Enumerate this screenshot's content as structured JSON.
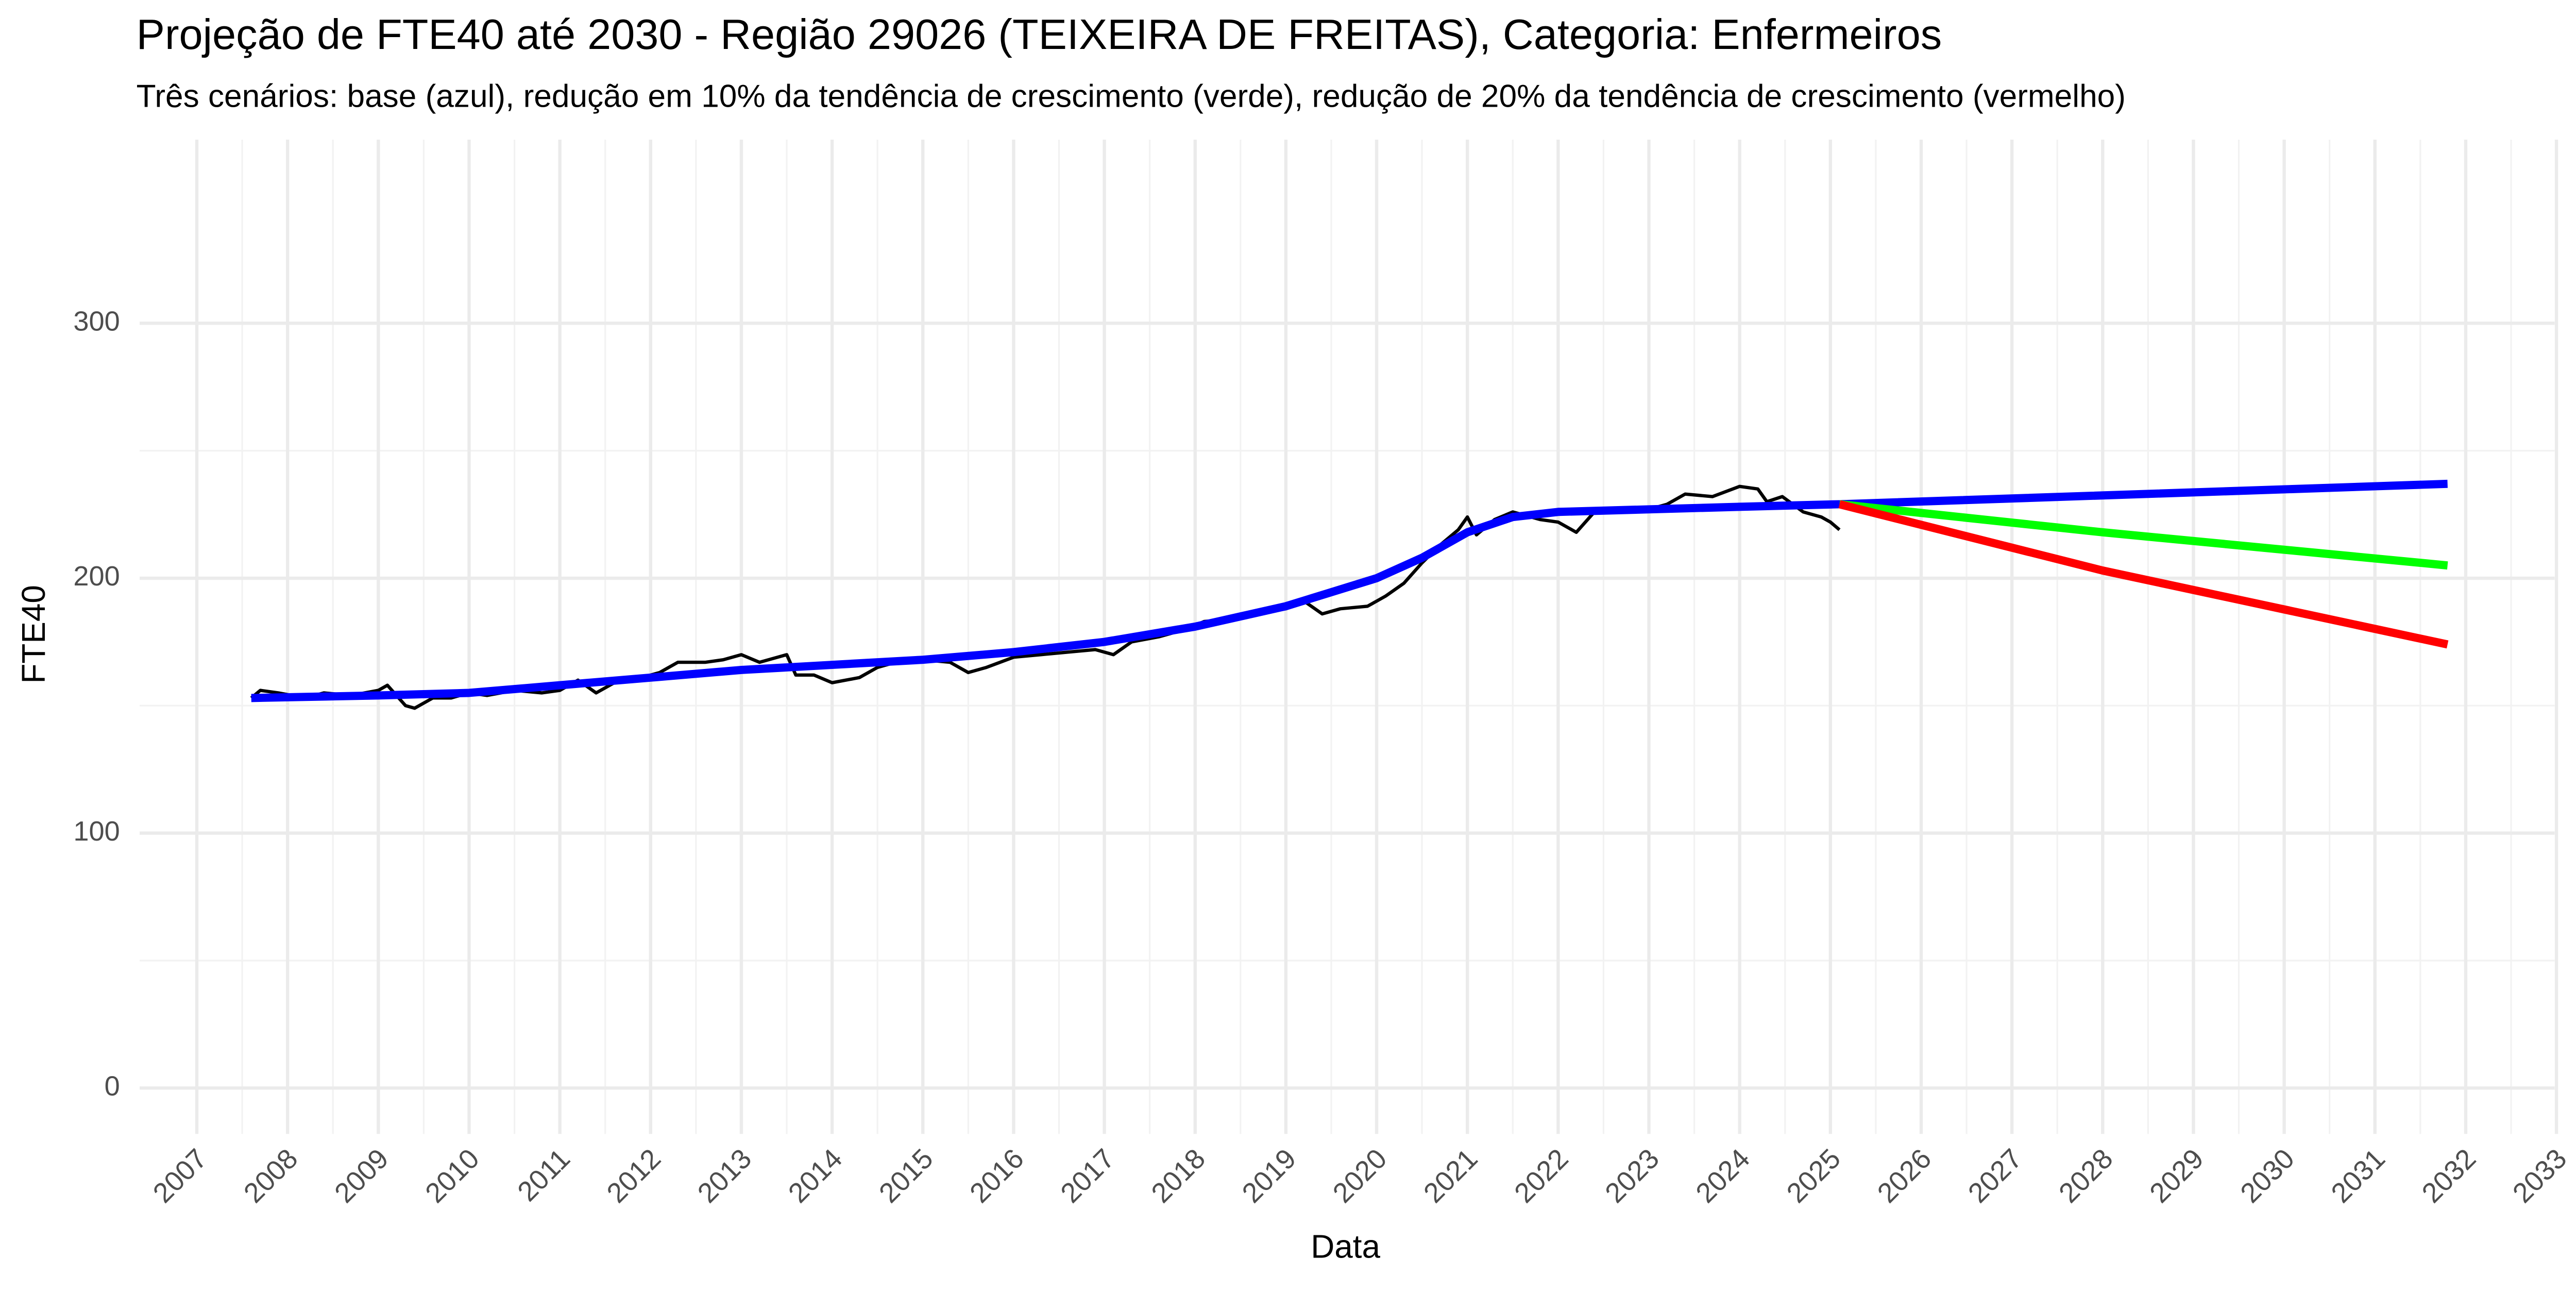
{
  "chart_data": {
    "type": "line",
    "title": "Projeção de FTE40 até 2030 - Região 29026 (TEIXEIRA DE FREITAS), Categoria: Enfermeiros",
    "subtitle": "Três cenários: base (azul), redução em 10% da tendência de crescimento (verde), redução de 20% da tendência de crescimento (vermelho)",
    "x_label": "Data",
    "y_label": "FTE40",
    "xlim": [
      2006.37,
      2032.98
    ],
    "xticks": [
      2007,
      2008,
      2009,
      2010,
      2011,
      2012,
      2013,
      2014,
      2015,
      2016,
      2017,
      2018,
      2019,
      2020,
      2021,
      2022,
      2023,
      2024,
      2025,
      2026,
      2027,
      2028,
      2029,
      2030,
      2031,
      2032,
      2033
    ],
    "ylim": [
      -18,
      372
    ],
    "yticks": [
      0,
      100,
      200,
      300
    ],
    "grid": true,
    "series": [
      {
        "color": "#000000",
        "x": [
          2007.6,
          2007.7,
          2007.9,
          2008.2,
          2008.4,
          2008.7,
          2009.0,
          2009.1,
          2009.3,
          2009.4,
          2009.6,
          2009.8,
          2010.0,
          2010.2,
          2010.5,
          2010.8,
          2011.0,
          2011.2,
          2011.4,
          2011.6,
          2011.9,
          2012.1,
          2012.3,
          2012.6,
          2012.8,
          2013.0,
          2013.2,
          2013.5,
          2013.6,
          2013.8,
          2014.0,
          2014.3,
          2014.5,
          2014.7,
          2015.0,
          2015.3,
          2015.5,
          2015.7,
          2016.0,
          2016.3,
          2016.6,
          2016.9,
          2017.1,
          2017.3,
          2017.6,
          2017.9,
          2018.1,
          2018.4,
          2018.7,
          2019.0,
          2019.2,
          2019.4,
          2019.6,
          2019.9,
          2020.1,
          2020.3,
          2020.5,
          2020.7,
          2020.9,
          2021.0,
          2021.1,
          2021.3,
          2021.5,
          2021.8,
          2022.0,
          2022.2,
          2022.4,
          2022.7,
          2023.0,
          2023.2,
          2023.4,
          2023.7,
          2024.0,
          2024.2,
          2024.3,
          2024.47,
          2024.7,
          2024.9,
          2025.0,
          2025.1
        ],
        "values": [
          153,
          156,
          155,
          153,
          155,
          154,
          156,
          158,
          150,
          149,
          153,
          153,
          155,
          154,
          156,
          155,
          156,
          160,
          155,
          159,
          161,
          163,
          167,
          167,
          168,
          170,
          167,
          170,
          162,
          162,
          159,
          161,
          165,
          167,
          168,
          167,
          163,
          165,
          169,
          170,
          171,
          172,
          170,
          175,
          177,
          180,
          183,
          184,
          186,
          188,
          191,
          186,
          188,
          189,
          193,
          198,
          206,
          213,
          219,
          224,
          217,
          223,
          226,
          223,
          222,
          218,
          226,
          226,
          227,
          229,
          233,
          232,
          236,
          235,
          230,
          232,
          226,
          224,
          222,
          219
        ]
      },
      {
        "color": "#0000ff",
        "x": [
          2007.6,
          2009,
          2010,
          2011,
          2012,
          2013,
          2014,
          2015,
          2016,
          2017,
          2018,
          2019,
          2020,
          2020.5,
          2021,
          2021.5,
          2022,
          2023,
          2024,
          2025.1,
          2031.8
        ],
        "values": [
          153,
          154,
          155,
          158,
          161,
          164,
          166,
          168,
          171,
          175,
          181,
          189,
          200,
          208,
          218,
          224,
          226,
          227,
          228,
          229,
          237
        ]
      },
      {
        "color": "#00ff00",
        "x": [
          2025.1,
          2028,
          2031.8
        ],
        "values": [
          229,
          218,
          205
        ]
      },
      {
        "color": "#ff0000",
        "x": [
          2025.1,
          2028,
          2031.8
        ],
        "values": [
          229,
          203,
          174
        ]
      }
    ]
  }
}
